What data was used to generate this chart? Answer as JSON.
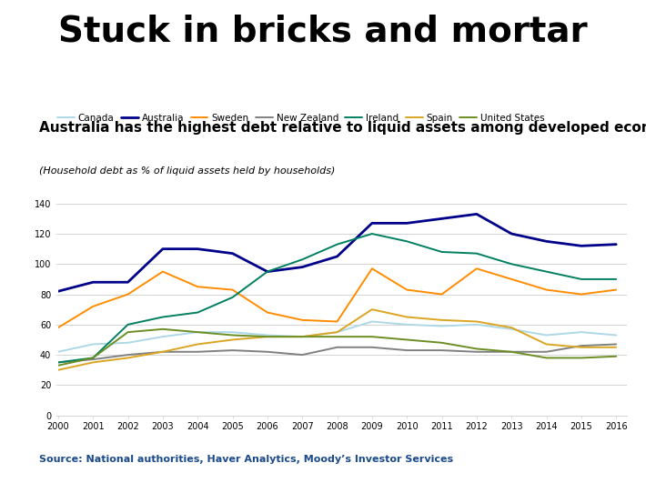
{
  "title": "Stuck in bricks and mortar",
  "subtitle": "Australia has the highest debt relative to liquid assets among developed economies",
  "note": "(Household debt as % of liquid assets held by households)",
  "source": "Source: National authorities, Haver Analytics, Moody’s Investor Services",
  "years": [
    2000,
    2001,
    2002,
    2003,
    2004,
    2005,
    2006,
    2007,
    2008,
    2009,
    2010,
    2011,
    2012,
    2013,
    2014,
    2015,
    2016
  ],
  "series": {
    "Canada": {
      "color": "#add8e6",
      "linewidth": 1.4,
      "values": [
        42,
        47,
        48,
        52,
        55,
        55,
        53,
        52,
        55,
        62,
        60,
        59,
        60,
        57,
        53,
        55,
        53
      ]
    },
    "Australia": {
      "color": "#00008B",
      "linewidth": 2.0,
      "values": [
        82,
        88,
        88,
        110,
        110,
        107,
        95,
        98,
        105,
        127,
        127,
        130,
        133,
        120,
        115,
        112,
        113
      ]
    },
    "Sweden": {
      "color": "#FF8C00",
      "linewidth": 1.4,
      "values": [
        58,
        72,
        80,
        95,
        85,
        83,
        68,
        63,
        62,
        97,
        83,
        80,
        97,
        90,
        83,
        80,
        83
      ]
    },
    "New Zealand": {
      "color": "#808080",
      "linewidth": 1.4,
      "values": [
        35,
        37,
        40,
        42,
        42,
        43,
        42,
        40,
        45,
        45,
        43,
        43,
        42,
        42,
        42,
        46,
        47
      ]
    },
    "Ireland": {
      "color": "#008060",
      "linewidth": 1.4,
      "values": [
        35,
        38,
        60,
        65,
        68,
        78,
        95,
        103,
        113,
        120,
        115,
        108,
        107,
        100,
        95,
        90,
        90
      ]
    },
    "Spain": {
      "color": "#DAA520",
      "linewidth": 1.4,
      "values": [
        30,
        35,
        38,
        42,
        47,
        50,
        52,
        52,
        55,
        70,
        65,
        63,
        62,
        58,
        47,
        45,
        45
      ]
    },
    "United States": {
      "color": "#6B8E23",
      "linewidth": 1.4,
      "values": [
        33,
        38,
        55,
        57,
        55,
        53,
        52,
        52,
        52,
        52,
        50,
        48,
        44,
        42,
        38,
        38,
        39
      ]
    }
  },
  "ylim": [
    0,
    150
  ],
  "yticks": [
    0,
    20,
    40,
    60,
    80,
    100,
    120,
    140
  ],
  "xlim": [
    2000,
    2016.3
  ],
  "background_color": "#ffffff",
  "title_fontsize": 28,
  "subtitle_fontsize": 11,
  "note_fontsize": 8,
  "source_fontsize": 8,
  "tick_fontsize": 7,
  "legend_fontsize": 7.5,
  "source_color": "#1a4a8a"
}
